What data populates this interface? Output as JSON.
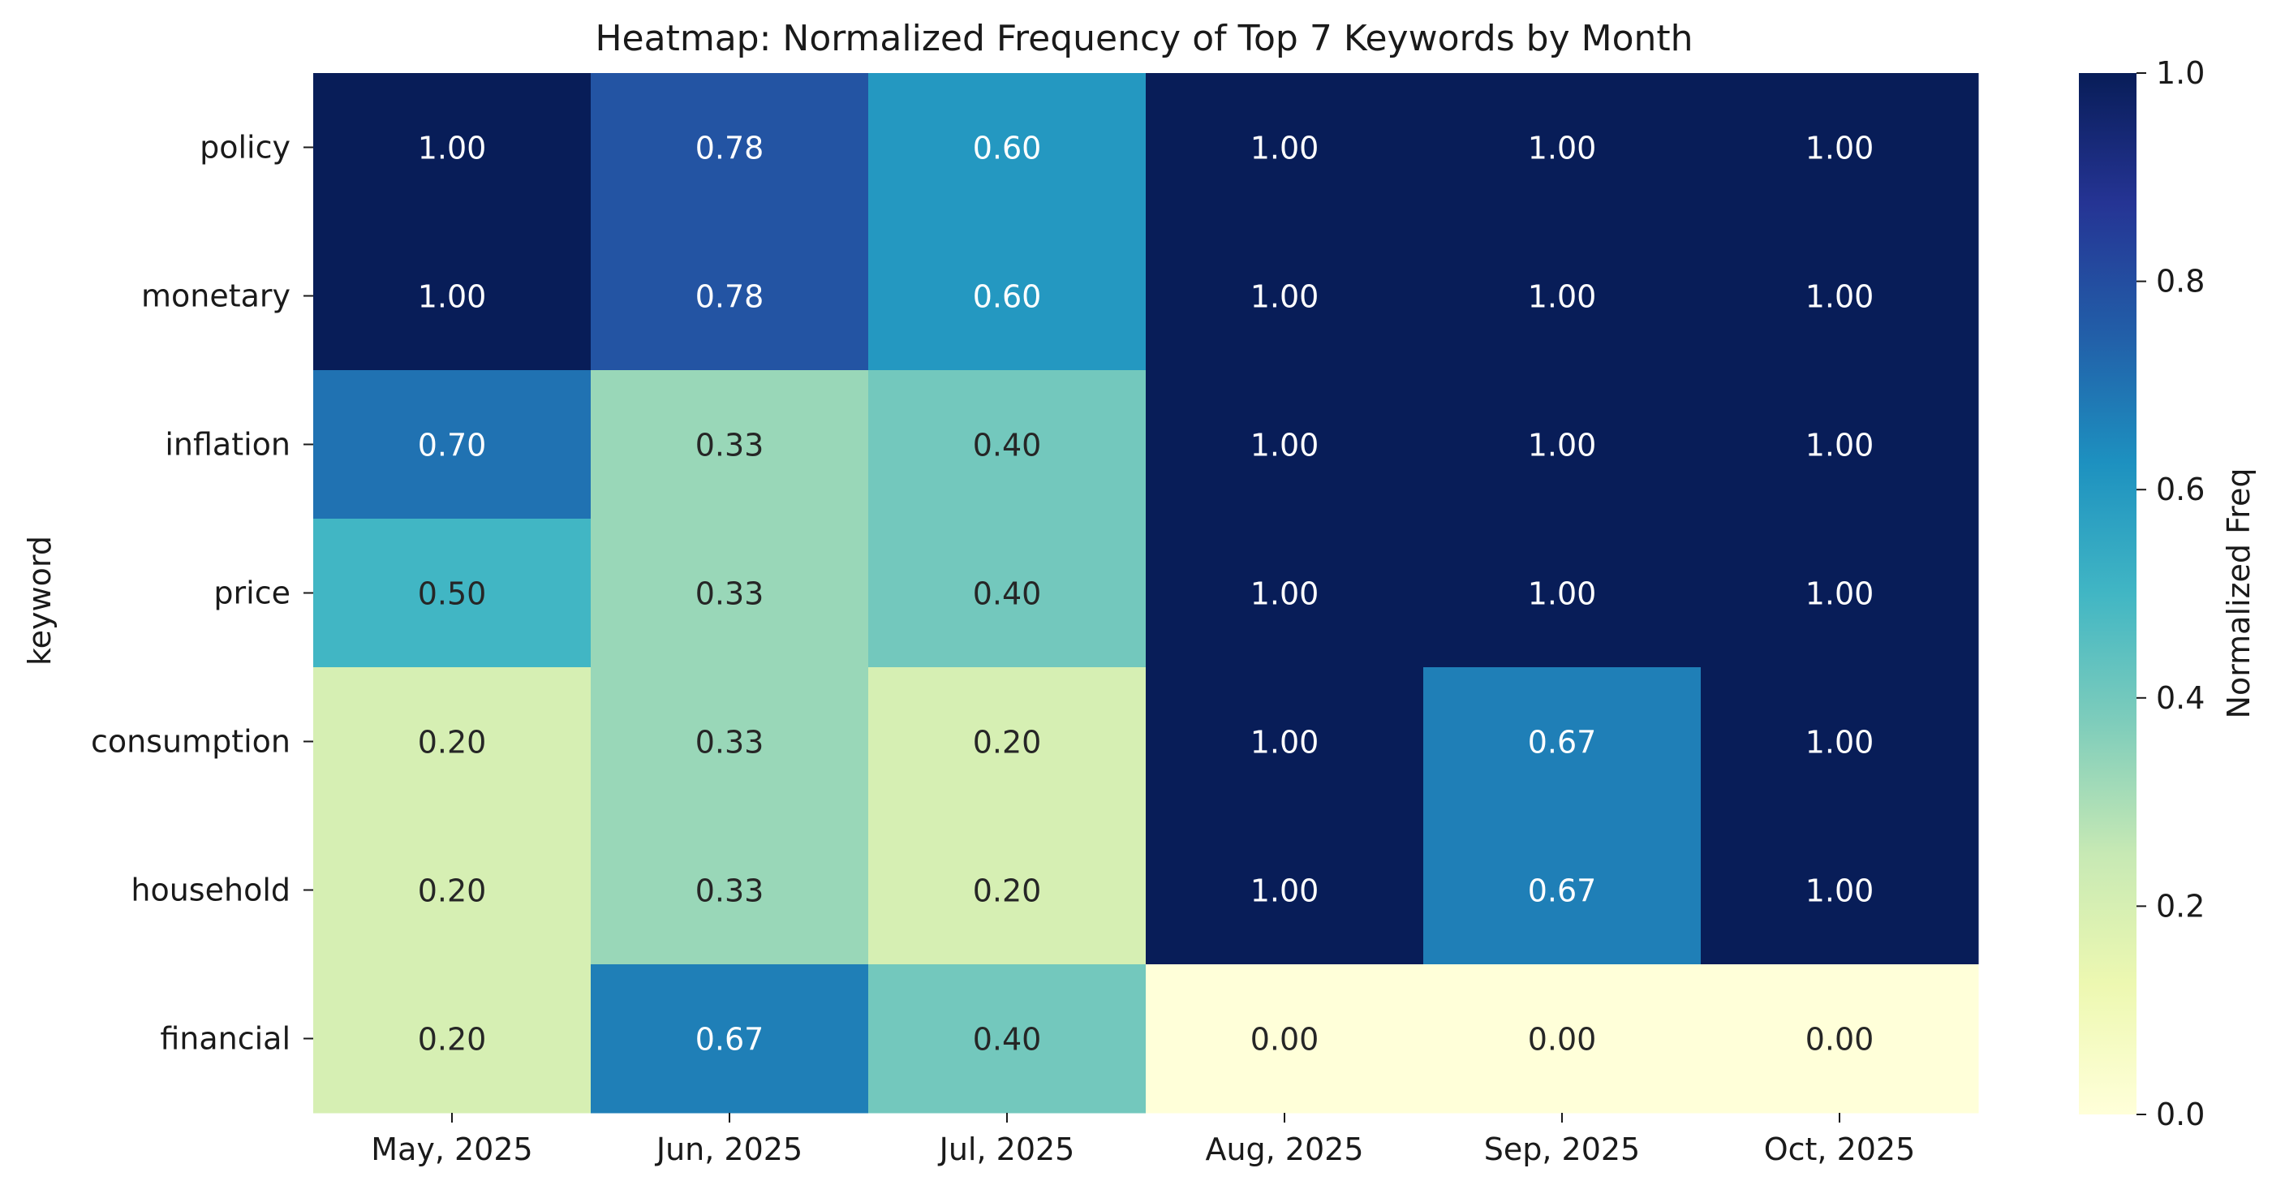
{
  "chart_data": {
    "type": "heatmap",
    "title": "Heatmap: Normalized Frequency of Top 7 Keywords by Month",
    "xlabel": "",
    "ylabel": "keyword",
    "colorbar_label": "Normalized Freq",
    "colormap": "YlGnBu",
    "vmin": 0.0,
    "vmax": 1.0,
    "colorbar_ticks": [
      "0.0",
      "0.2",
      "0.4",
      "0.6",
      "0.8",
      "1.0"
    ],
    "colorbar_tick_values": [
      0.0,
      0.2,
      0.4,
      0.6,
      0.8,
      1.0
    ],
    "x_labels": [
      "May, 2025",
      "Jun, 2025",
      "Jul, 2025",
      "Aug, 2025",
      "Sep, 2025",
      "Oct, 2025"
    ],
    "y_labels": [
      "policy",
      "monetary",
      "inflation",
      "price",
      "consumption",
      "household",
      "financial"
    ],
    "values": [
      [
        1.0,
        0.78,
        0.6,
        1.0,
        1.0,
        1.0
      ],
      [
        1.0,
        0.78,
        0.6,
        1.0,
        1.0,
        1.0
      ],
      [
        0.7,
        0.33,
        0.4,
        1.0,
        1.0,
        1.0
      ],
      [
        0.5,
        0.33,
        0.4,
        1.0,
        1.0,
        1.0
      ],
      [
        0.2,
        0.33,
        0.2,
        1.0,
        0.67,
        1.0
      ],
      [
        0.2,
        0.33,
        0.2,
        1.0,
        0.67,
        1.0
      ],
      [
        0.2,
        0.67,
        0.4,
        0.0,
        0.0,
        0.0
      ]
    ],
    "annotation_format": "2 decimals",
    "grid": false,
    "legend": "colorbar-right"
  }
}
